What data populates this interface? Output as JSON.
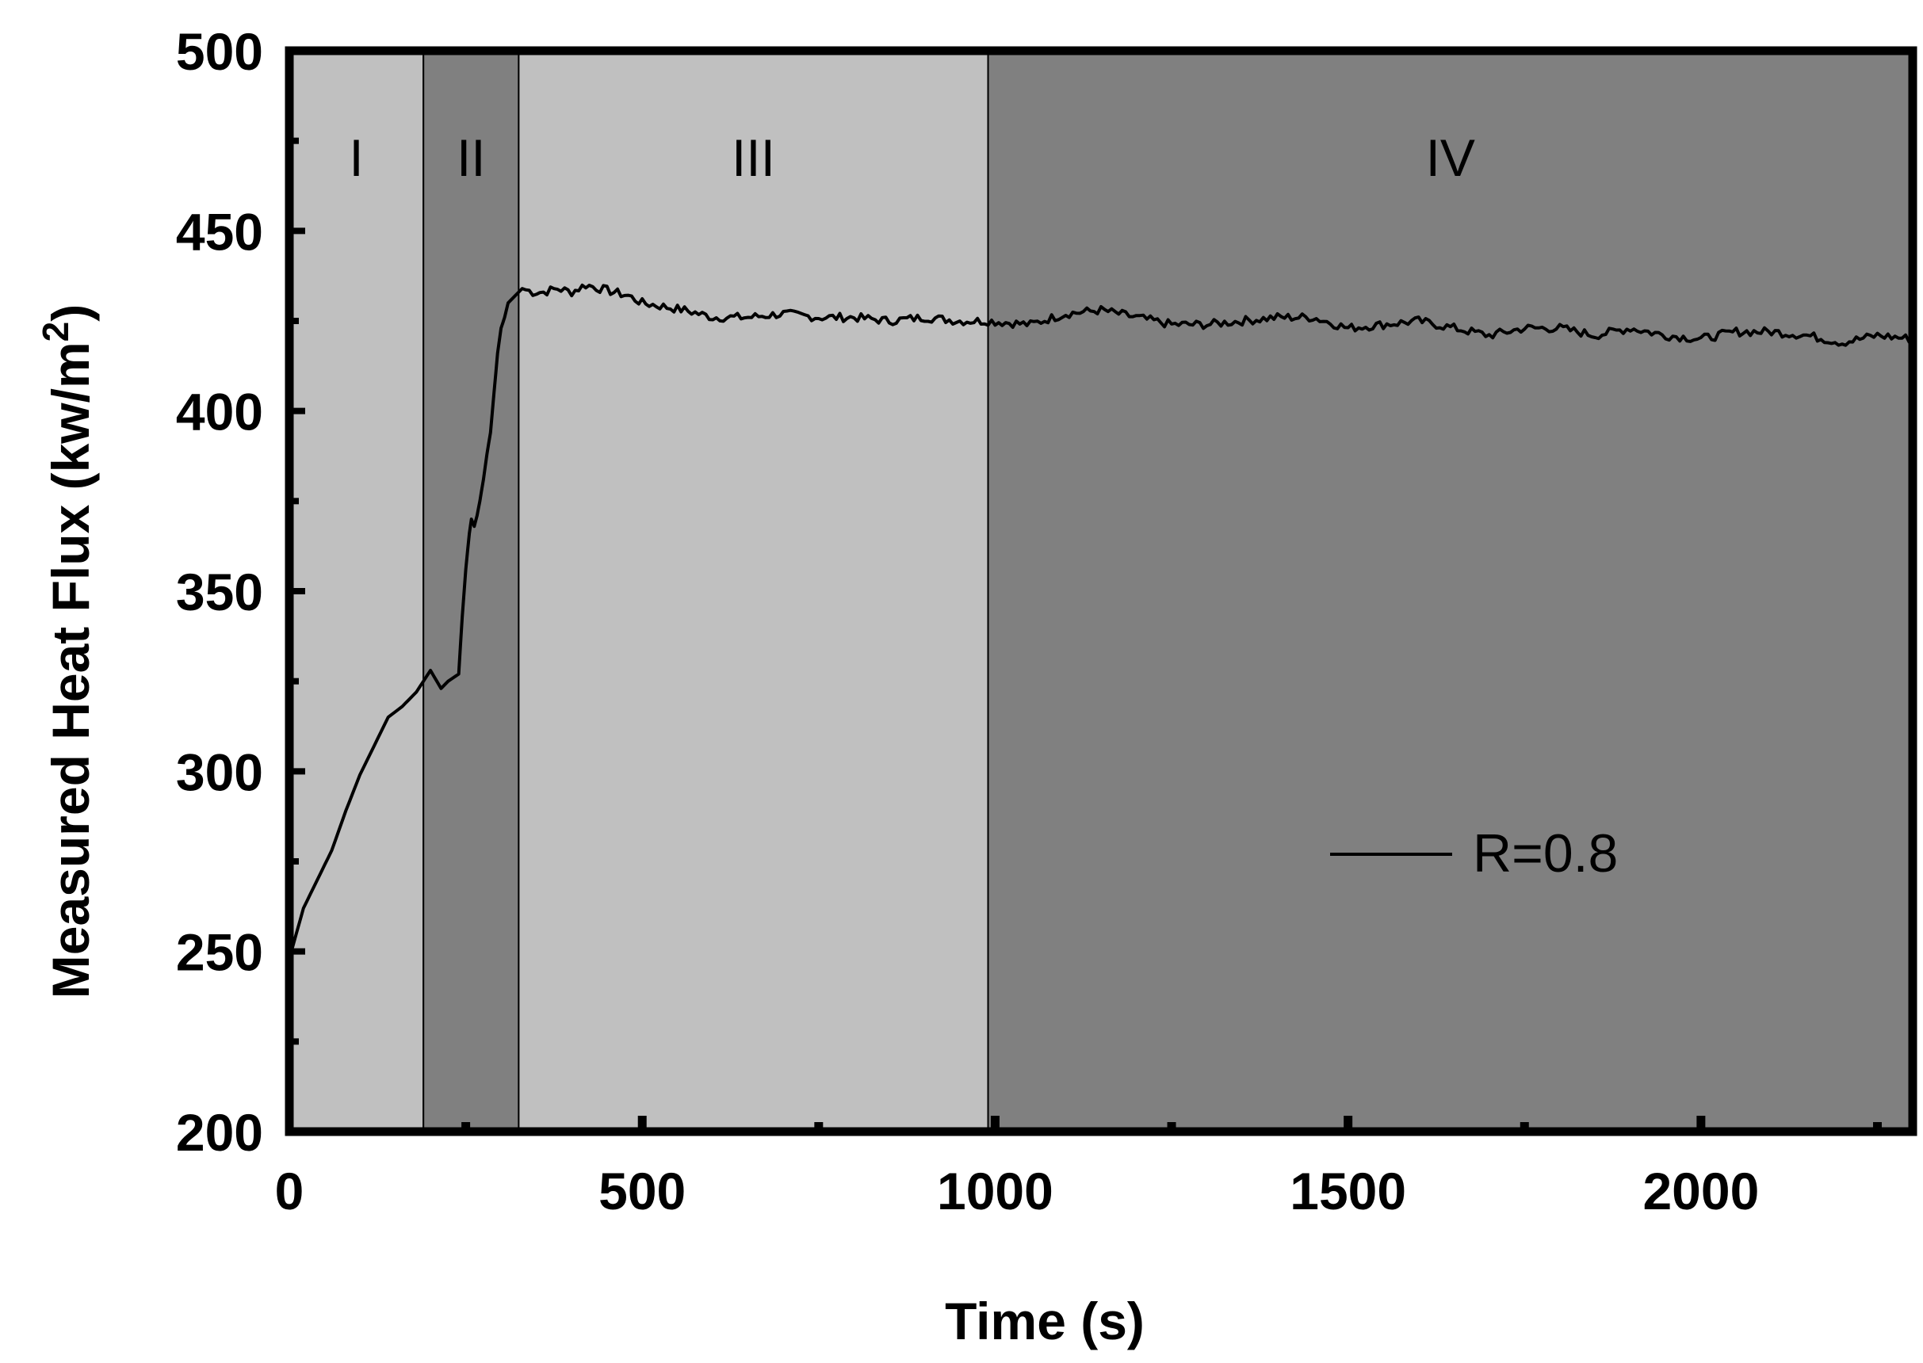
{
  "chart_data": {
    "type": "line",
    "title": "",
    "xlabel": "Time (s)",
    "ylabel": "Measured Heat Flux (kw/m",
    "ylabel_sup": "2",
    "ylabel_close": ")",
    "xlim": [
      0,
      2300
    ],
    "ylim": [
      200,
      500
    ],
    "xticks": [
      0,
      500,
      1000,
      1500,
      2000
    ],
    "xtick_labels": [
      "0",
      "500",
      "1000",
      "1500",
      "2000"
    ],
    "yticks": [
      200,
      250,
      300,
      350,
      400,
      450,
      500
    ],
    "ytick_labels": [
      "200",
      "250",
      "300",
      "350",
      "400",
      "450",
      "500"
    ],
    "grid": false,
    "legend_position": "center-right",
    "regions": [
      {
        "label": "I",
        "x_start": 0,
        "x_end": 190,
        "color": "#c0c0c0"
      },
      {
        "label": "II",
        "x_start": 190,
        "x_end": 325,
        "color": "#808080"
      },
      {
        "label": "III",
        "x_start": 325,
        "x_end": 990,
        "color": "#c0c0c0"
      },
      {
        "label": "IV",
        "x_start": 990,
        "x_end": 2300,
        "color": "#808080"
      }
    ],
    "series": [
      {
        "name": "R=0.8",
        "color": "#000000",
        "x": [
          0,
          20,
          40,
          60,
          80,
          100,
          120,
          140,
          160,
          180,
          200,
          215,
          225,
          240,
          245,
          250,
          255,
          258,
          262,
          266,
          270,
          275,
          280,
          285,
          290,
          295,
          300,
          305,
          310,
          320,
          330,
          345,
          360,
          380,
          400,
          420,
          440,
          460,
          480,
          500,
          530,
          560,
          600,
          650,
          700,
          750,
          800,
          850,
          900,
          950,
          990,
          1050,
          1100,
          1150,
          1200,
          1250,
          1300,
          1350,
          1400,
          1450,
          1500,
          1550,
          1600,
          1650,
          1700,
          1750,
          1800,
          1850,
          1900,
          1950,
          2000,
          2050,
          2100,
          2150,
          2200,
          2250,
          2300
        ],
        "y": [
          248,
          262,
          270,
          278,
          289,
          299,
          307,
          315,
          318,
          322,
          328,
          323,
          325,
          327,
          343,
          356,
          366,
          370,
          368,
          371,
          375,
          381,
          388,
          394,
          405,
          416,
          423,
          426,
          430,
          432,
          434,
          433,
          433,
          434,
          433,
          435,
          434,
          433,
          432,
          430,
          429,
          428,
          426,
          426,
          427,
          426,
          426,
          425,
          426,
          425,
          425,
          424,
          427,
          428,
          426,
          424,
          424,
          425,
          426,
          426,
          423,
          424,
          425,
          423,
          421,
          423,
          423,
          421,
          423,
          421,
          420,
          422,
          422,
          421,
          419,
          421,
          420
        ]
      }
    ]
  }
}
